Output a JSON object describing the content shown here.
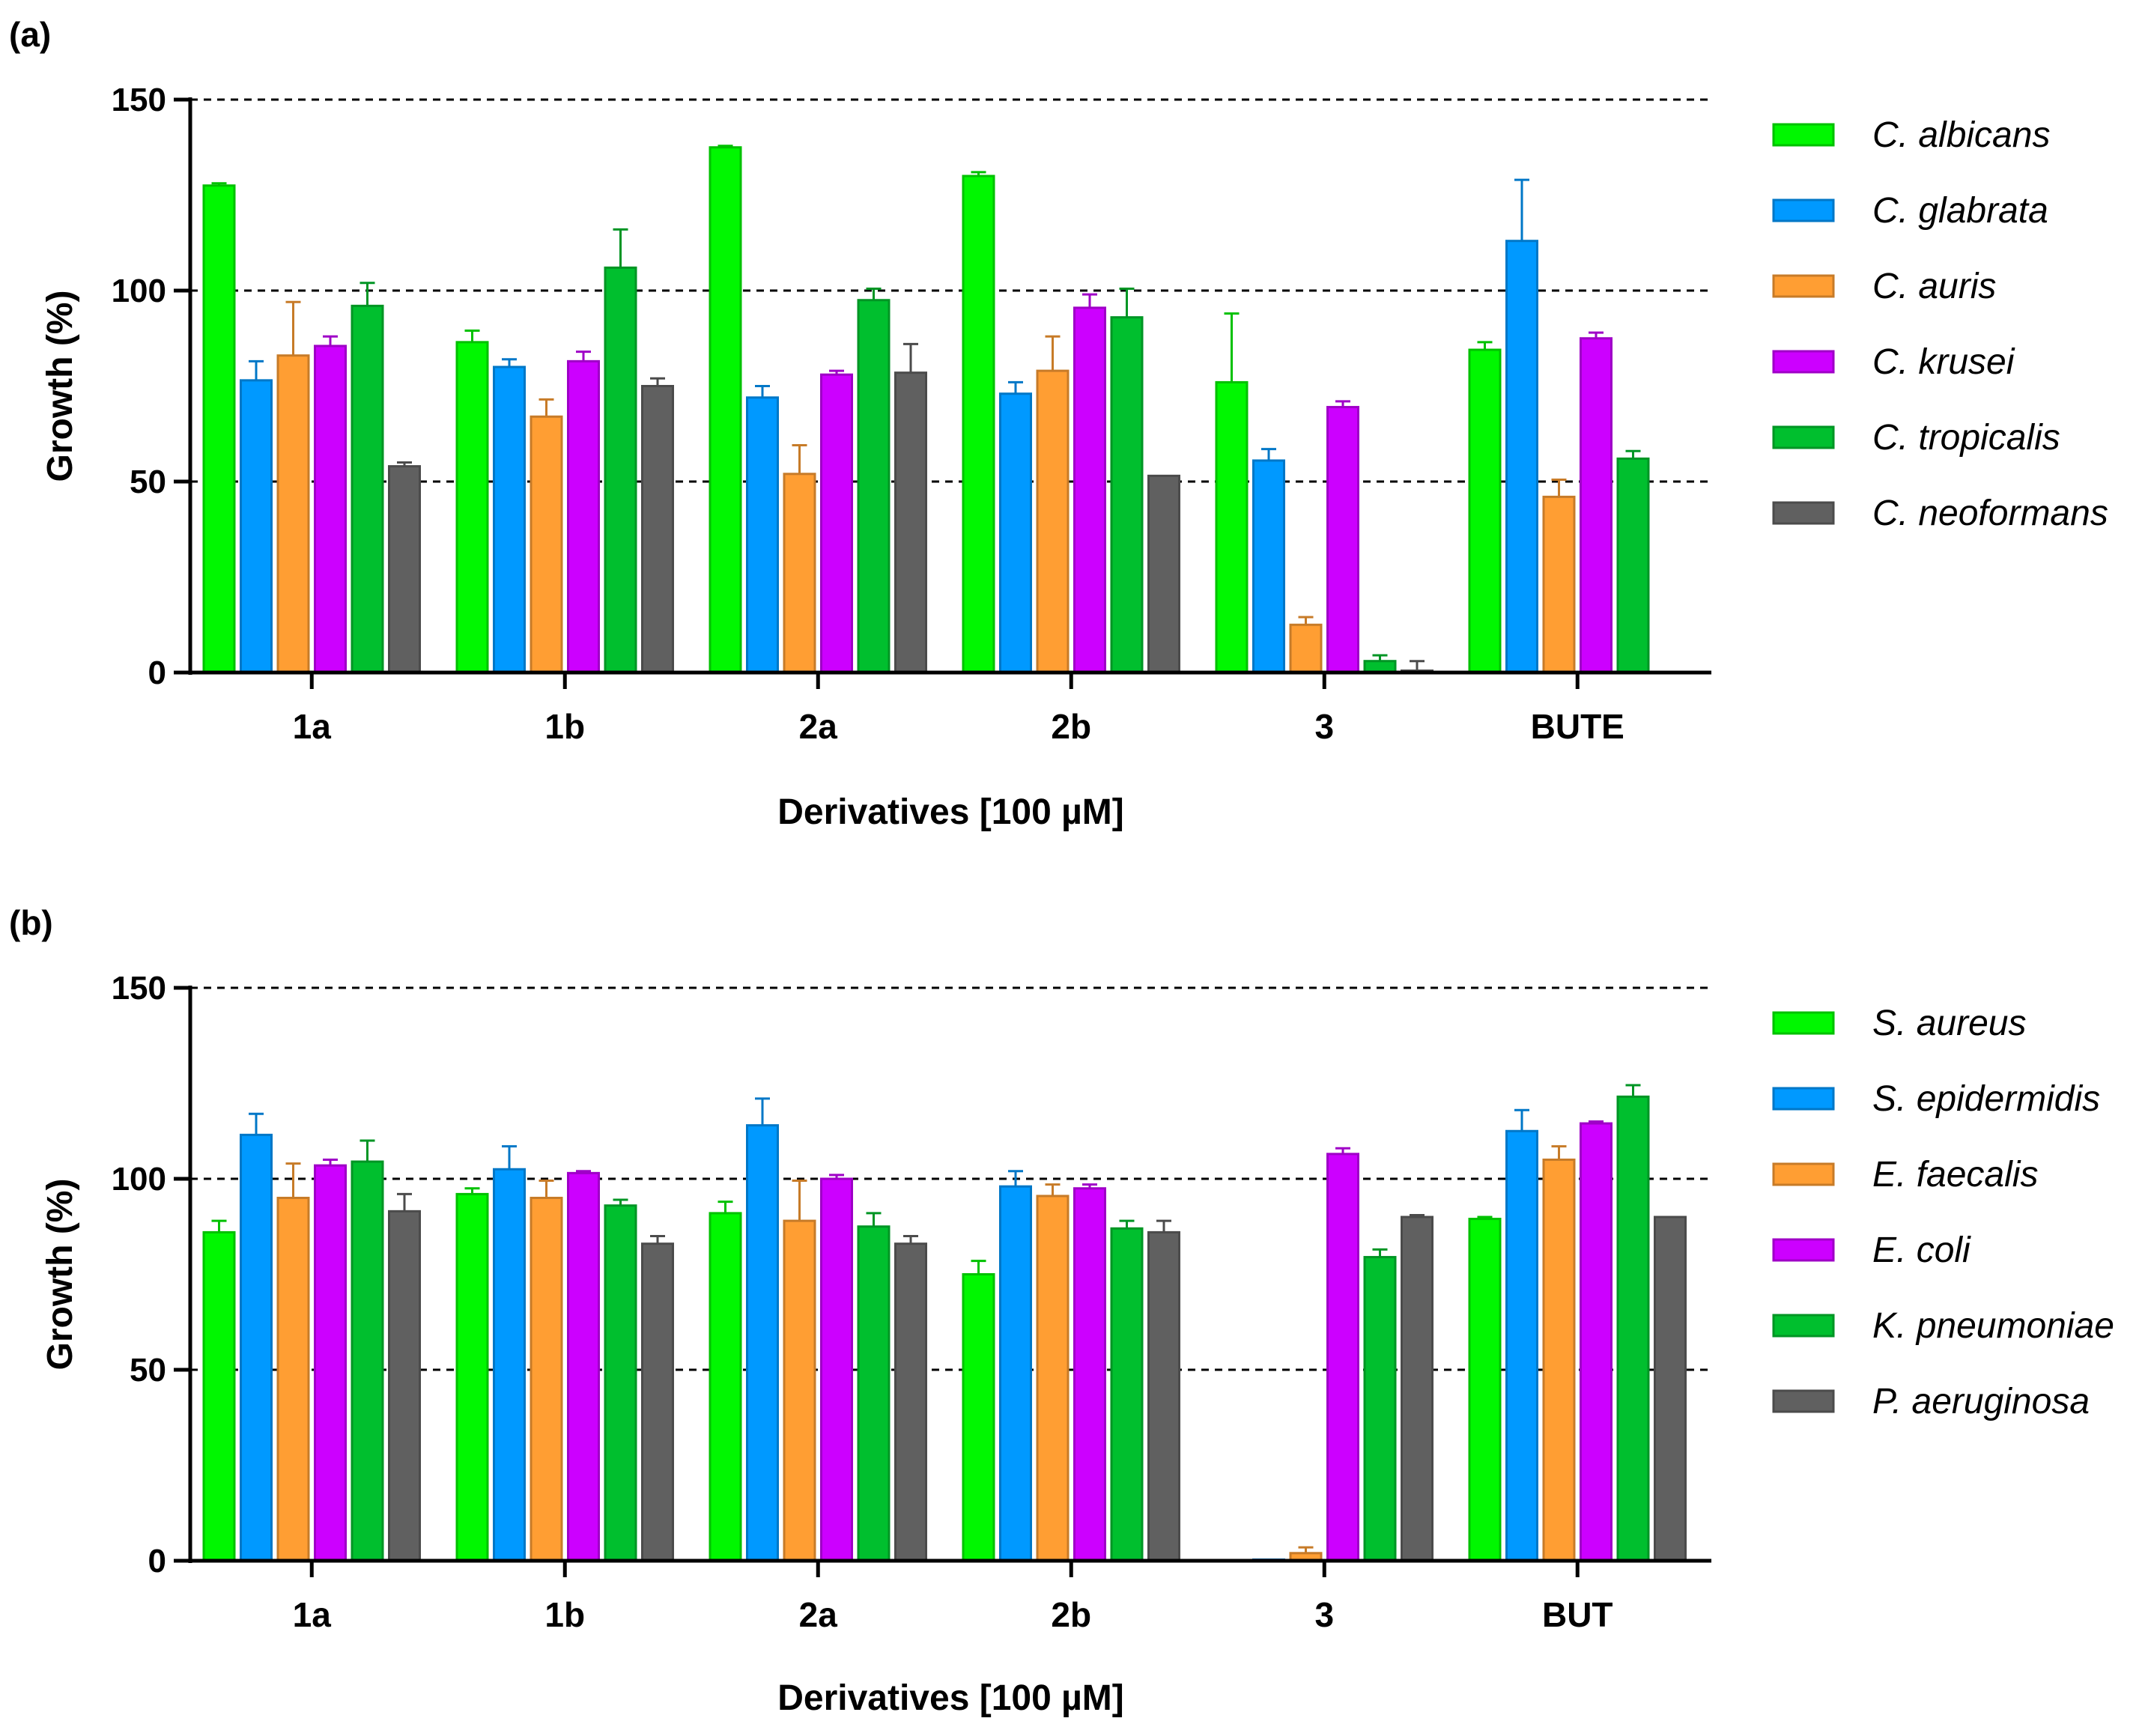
{
  "colors": [
    "#00F700",
    "#0099FF",
    "#FF9E33",
    "#CC00FF",
    "#00BF2E",
    "#606060"
  ],
  "chart_data": [
    {
      "type": "bar",
      "panel_label": "(a)",
      "title": "",
      "xlabel": "Derivatives [100 µM]",
      "ylabel": "Growth (%)",
      "ylim": [
        0,
        150
      ],
      "yticks": [
        "0",
        "50",
        "100",
        "150"
      ],
      "grid_lines": [
        50,
        100,
        150
      ],
      "legend_position": "right",
      "categories": [
        "1a",
        "1b",
        "2a",
        "2b",
        "3",
        "BUTE"
      ],
      "series": [
        {
          "name": "C. albicans",
          "values": [
            127.5,
            86.5,
            137.5,
            130,
            76,
            84.5
          ],
          "errors": [
            0.6,
            3,
            0.4,
            1,
            18,
            2
          ]
        },
        {
          "name": "C. glabrata",
          "values": [
            76.5,
            80,
            72,
            73,
            55.5,
            113
          ],
          "errors": [
            5,
            2,
            3,
            3,
            3,
            16
          ]
        },
        {
          "name": "C. auris",
          "values": [
            83,
            67,
            52,
            79,
            12.5,
            46
          ],
          "errors": [
            14,
            4.5,
            7.5,
            9,
            2,
            4.5
          ]
        },
        {
          "name": "C. krusei",
          "values": [
            85.5,
            81.5,
            78,
            95.5,
            69.5,
            87.5
          ],
          "errors": [
            2.5,
            2.5,
            1,
            3.5,
            1.5,
            1.5
          ]
        },
        {
          "name": "C. tropicalis",
          "values": [
            96,
            106,
            97.5,
            93,
            3,
            56
          ],
          "errors": [
            6,
            10,
            3,
            7.5,
            1.5,
            2
          ]
        },
        {
          "name": "C. neoformans",
          "values": [
            54,
            75,
            78.5,
            51.5,
            0.5,
            null
          ],
          "errors": [
            1,
            2,
            7.5,
            0,
            2.5,
            null
          ]
        }
      ]
    },
    {
      "type": "bar",
      "panel_label": "(b)",
      "title": "",
      "xlabel": "Derivatives [100 µM]",
      "ylabel": "Growth (%)",
      "ylim": [
        0,
        150
      ],
      "yticks": [
        "0",
        "50",
        "100",
        "150"
      ],
      "grid_lines": [
        50,
        100,
        150
      ],
      "legend_position": "right",
      "categories": [
        "1a",
        "1b",
        "2a",
        "2b",
        "3",
        "BUT"
      ],
      "series": [
        {
          "name": "S. aureus",
          "values": [
            86,
            96,
            91,
            75,
            0,
            89.5
          ],
          "errors": [
            3,
            1.5,
            3,
            3.5,
            0,
            0.5
          ]
        },
        {
          "name": "S. epidermidis",
          "values": [
            111.5,
            102.5,
            114,
            98,
            0.3,
            112.5
          ],
          "errors": [
            5.5,
            6,
            7,
            4,
            0,
            5.5
          ]
        },
        {
          "name": "E. faecalis",
          "values": [
            95,
            95,
            89,
            95.5,
            2,
            105
          ],
          "errors": [
            9,
            4.5,
            10.5,
            3,
            1.5,
            3.5
          ]
        },
        {
          "name": "E. coli",
          "values": [
            103.5,
            101.5,
            100,
            97.5,
            106.5,
            114.5
          ],
          "errors": [
            1.5,
            0.5,
            1,
            1,
            1.5,
            0.5
          ]
        },
        {
          "name": "K. pneumoniae",
          "values": [
            104.5,
            93,
            87.5,
            87,
            79.5,
            121.5
          ],
          "errors": [
            5.5,
            1.5,
            3.5,
            2,
            2,
            3
          ]
        },
        {
          "name": "P. aeruginosa",
          "values": [
            91.5,
            83,
            83,
            86,
            90,
            90
          ],
          "errors": [
            4.5,
            2,
            2,
            3,
            0.5,
            0
          ]
        }
      ]
    }
  ]
}
